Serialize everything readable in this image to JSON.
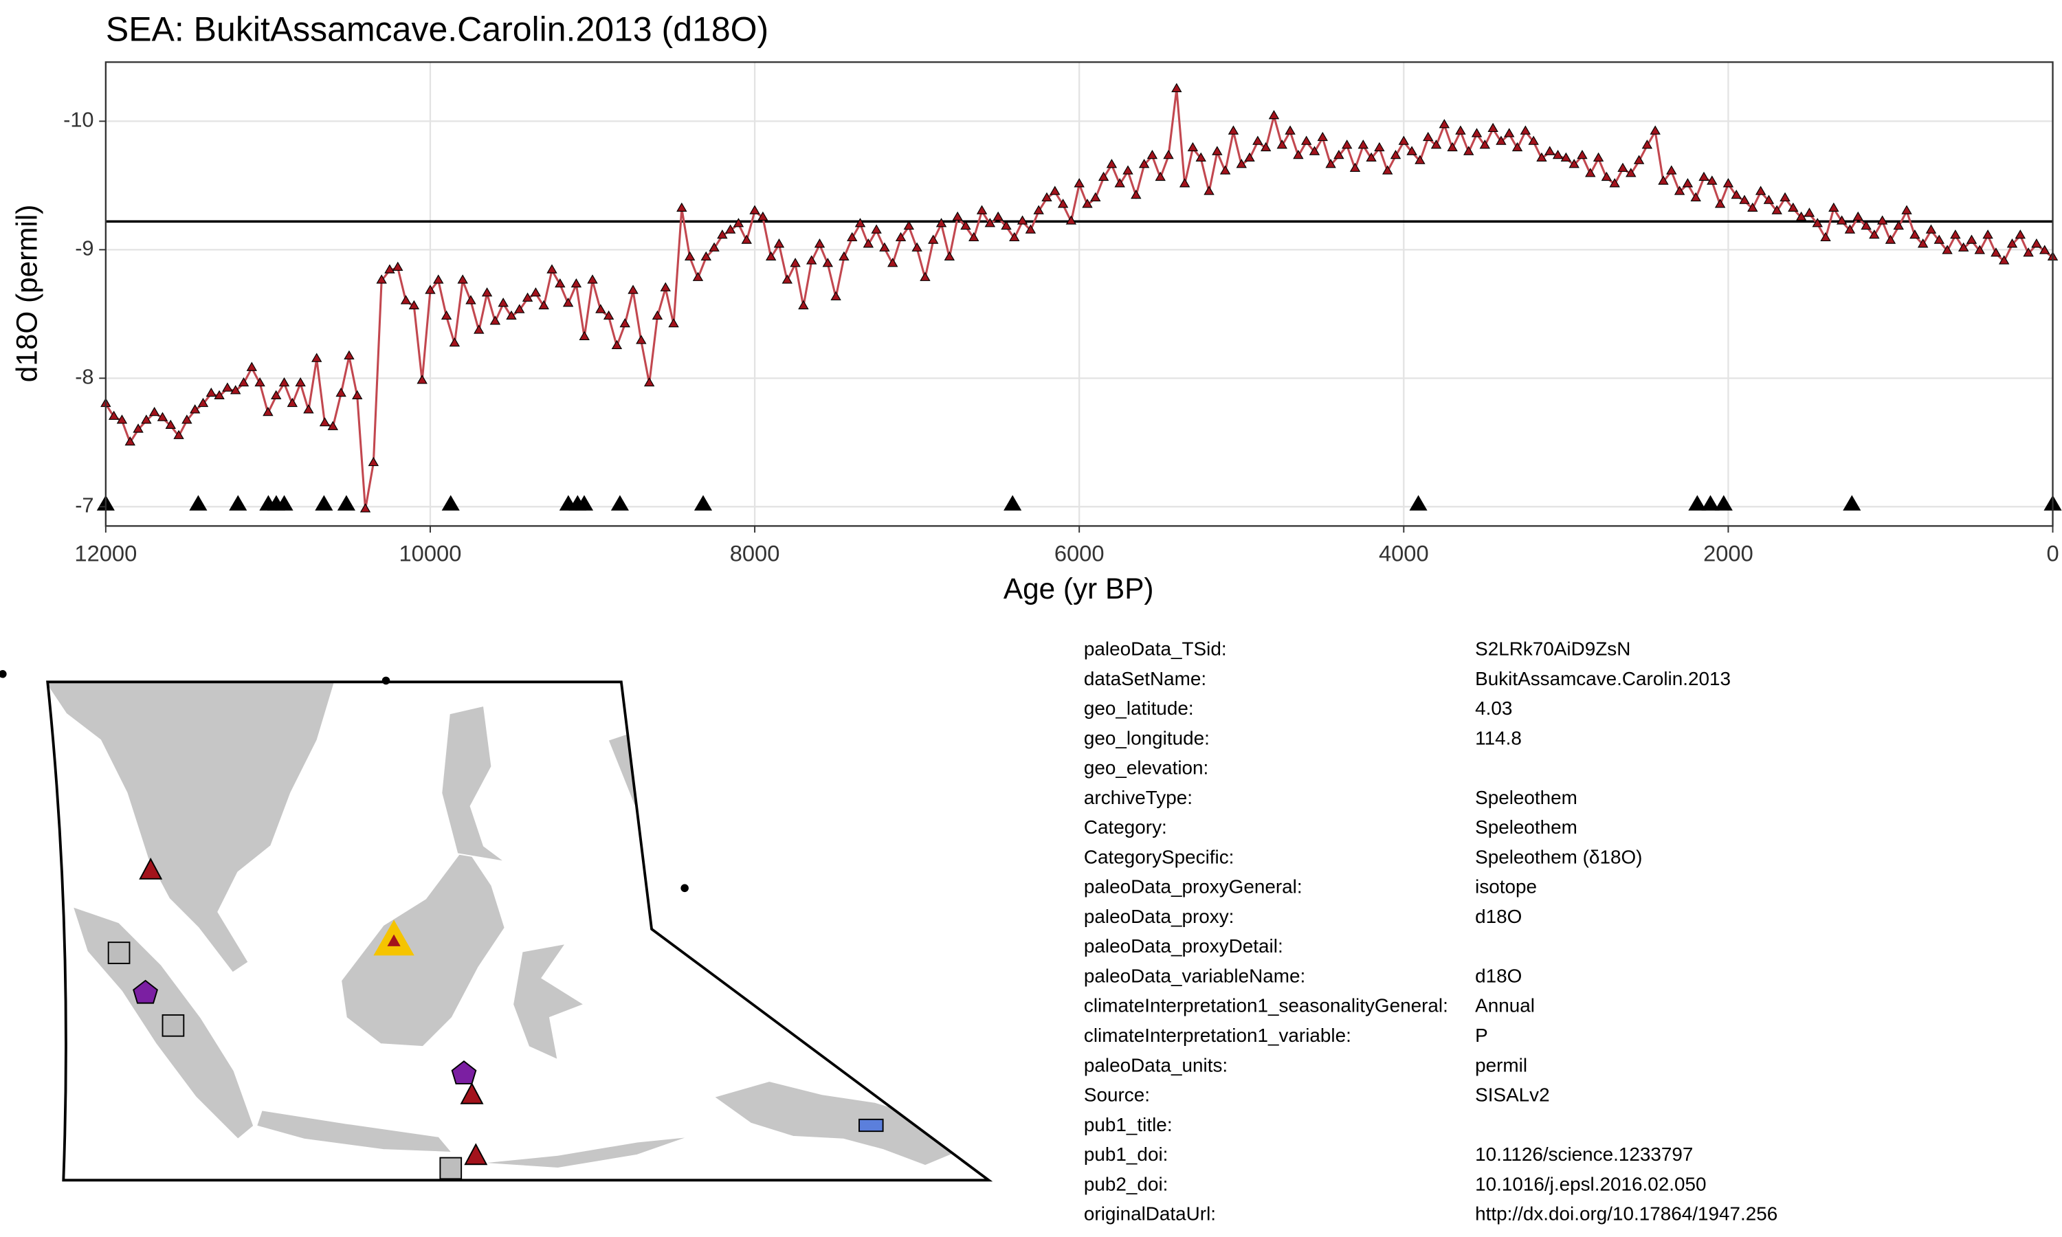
{
  "chart_data": {
    "type": "line",
    "title": "SEA: BukitAssamcave.Carolin.2013 (d18O)",
    "xlabel": "Age (yr BP)",
    "ylabel": "d18O (permil)",
    "xlim": [
      12000,
      0
    ],
    "ylim": [
      -6.85,
      -10.46
    ],
    "xticks": [
      12000,
      10000,
      8000,
      6000,
      4000,
      2000,
      0
    ],
    "yticks": [
      -10,
      -9,
      -8,
      -7
    ],
    "grid": true,
    "hline": -9.22,
    "series": [
      {
        "color": "#a3131c",
        "line_color": "#c2474f",
        "marker": "triangle",
        "show_line": true,
        "x": [
          12000,
          11950,
          11900,
          11850,
          11800,
          11750,
          11700,
          11650,
          11600,
          11550,
          11500,
          11450,
          11400,
          11350,
          11300,
          11250,
          11200,
          11150,
          11100,
          11050,
          11000,
          10950,
          10900,
          10850,
          10800,
          10750,
          10700,
          10650,
          10600,
          10550,
          10500,
          10450,
          10400,
          10350,
          10300,
          10250,
          10200,
          10150,
          10100,
          10050,
          10000,
          9950,
          9900,
          9850,
          9800,
          9750,
          9700,
          9650,
          9600,
          9550,
          9500,
          9450,
          9400,
          9350,
          9300,
          9250,
          9200,
          9150,
          9100,
          9050,
          9000,
          8950,
          8900,
          8850,
          8800,
          8750,
          8700,
          8650,
          8600,
          8550,
          8500,
          8450,
          8400,
          8350,
          8300,
          8250,
          8200,
          8150,
          8100,
          8050,
          8000,
          7950,
          7900,
          7850,
          7800,
          7750,
          7700,
          7650,
          7600,
          7550,
          7500,
          7450,
          7400,
          7350,
          7300,
          7250,
          7200,
          7150,
          7100,
          7050,
          7000,
          6950,
          6900,
          6850,
          6800,
          6750,
          6700,
          6650,
          6600,
          6550,
          6500,
          6450,
          6400,
          6350,
          6300,
          6250,
          6200,
          6150,
          6100,
          6050,
          6000,
          5950,
          5900,
          5850,
          5800,
          5750,
          5700,
          5650,
          5600,
          5550,
          5500,
          5450,
          5400,
          5350,
          5300,
          5250,
          5200,
          5150,
          5100,
          5050,
          5000,
          4950,
          4900,
          4850,
          4800,
          4750,
          4700,
          4650,
          4600,
          4550,
          4500,
          4450,
          4400,
          4350,
          4300,
          4250,
          4200,
          4150,
          4100,
          4050,
          4000,
          3950,
          3900,
          3850,
          3800,
          3750,
          3700,
          3650,
          3600,
          3550,
          3500,
          3450,
          3400,
          3350,
          3300,
          3250,
          3200,
          3150,
          3100,
          3050,
          3000,
          2950,
          2900,
          2850,
          2800,
          2750,
          2700,
          2650,
          2600,
          2550,
          2500,
          2450,
          2400,
          2350,
          2300,
          2250,
          2200,
          2150,
          2100,
          2050,
          2000,
          1950,
          1900,
          1850,
          1800,
          1750,
          1700,
          1650,
          1600,
          1550,
          1500,
          1450,
          1400,
          1350,
          1300,
          1250,
          1200,
          1150,
          1100,
          1050,
          1000,
          950,
          900,
          850,
          800,
          750,
          700,
          650,
          600,
          550,
          500,
          450,
          400,
          350,
          300,
          250,
          200,
          150,
          100,
          50,
          0
        ],
        "values": [
          -7.8,
          -7.7,
          -7.67,
          -7.5,
          -7.6,
          -7.67,
          -7.73,
          -7.69,
          -7.63,
          -7.55,
          -7.67,
          -7.75,
          -7.8,
          -7.88,
          -7.86,
          -7.92,
          -7.9,
          -7.96,
          -8.08,
          -7.96,
          -7.73,
          -7.86,
          -7.96,
          -7.8,
          -7.96,
          -7.75,
          -8.15,
          -7.65,
          -7.62,
          -7.88,
          -8.17,
          -7.86,
          -6.98,
          -7.34,
          -8.76,
          -8.84,
          -8.86,
          -8.6,
          -8.56,
          -7.98,
          -8.68,
          -8.76,
          -8.48,
          -8.27,
          -8.76,
          -8.6,
          -8.37,
          -8.66,
          -8.44,
          -8.58,
          -8.48,
          -8.53,
          -8.62,
          -8.66,
          -8.56,
          -8.84,
          -8.73,
          -8.58,
          -8.73,
          -8.32,
          -8.76,
          -8.53,
          -8.48,
          -8.25,
          -8.42,
          -8.68,
          -8.29,
          -7.96,
          -8.48,
          -8.7,
          -8.42,
          -9.32,
          -8.94,
          -8.78,
          -8.94,
          -9.01,
          -9.11,
          -9.15,
          -9.2,
          -9.07,
          -9.3,
          -9.25,
          -8.94,
          -9.04,
          -8.76,
          -8.89,
          -8.56,
          -8.91,
          -9.04,
          -8.89,
          -8.63,
          -8.94,
          -9.09,
          -9.2,
          -9.04,
          -9.15,
          -9.01,
          -8.89,
          -9.09,
          -9.18,
          -9.01,
          -8.78,
          -9.07,
          -9.2,
          -8.94,
          -9.25,
          -9.18,
          -9.09,
          -9.3,
          -9.2,
          -9.25,
          -9.18,
          -9.09,
          -9.22,
          -9.15,
          -9.3,
          -9.4,
          -9.45,
          -9.35,
          -9.22,
          -9.51,
          -9.35,
          -9.4,
          -9.56,
          -9.66,
          -9.51,
          -9.61,
          -9.42,
          -9.66,
          -9.73,
          -9.56,
          -9.73,
          -10.25,
          -9.51,
          -9.79,
          -9.71,
          -9.45,
          -9.76,
          -9.61,
          -9.92,
          -9.66,
          -9.71,
          -9.84,
          -9.79,
          -10.04,
          -9.81,
          -9.92,
          -9.73,
          -9.84,
          -9.76,
          -9.87,
          -9.66,
          -9.73,
          -9.81,
          -9.63,
          -9.81,
          -9.71,
          -9.79,
          -9.61,
          -9.73,
          -9.84,
          -9.76,
          -9.69,
          -9.87,
          -9.81,
          -9.97,
          -9.79,
          -9.92,
          -9.76,
          -9.9,
          -9.81,
          -9.94,
          -9.84,
          -9.9,
          -9.79,
          -9.92,
          -9.84,
          -9.71,
          -9.76,
          -9.73,
          -9.71,
          -9.66,
          -9.73,
          -9.59,
          -9.71,
          -9.56,
          -9.51,
          -9.63,
          -9.59,
          -9.69,
          -9.81,
          -9.92,
          -9.53,
          -9.61,
          -9.45,
          -9.51,
          -9.4,
          -9.56,
          -9.53,
          -9.35,
          -9.51,
          -9.42,
          -9.38,
          -9.32,
          -9.45,
          -9.38,
          -9.3,
          -9.4,
          -9.32,
          -9.25,
          -9.28,
          -9.2,
          -9.09,
          -9.32,
          -9.22,
          -9.15,
          -9.25,
          -9.18,
          -9.11,
          -9.22,
          -9.07,
          -9.18,
          -9.3,
          -9.11,
          -9.04,
          -9.15,
          -9.07,
          -8.99,
          -9.11,
          -9.01,
          -9.07,
          -8.99,
          -9.11,
          -8.97,
          -8.91,
          -9.04,
          -9.11,
          -8.97,
          -9.04,
          -8.99,
          -8.94
        ]
      },
      {
        "color": "#000000",
        "marker": "triangle",
        "show_line": false,
        "x": [
          12000,
          11430,
          11185,
          10998,
          10949,
          10900,
          10655,
          10517,
          9874,
          9149,
          9092,
          9051,
          8831,
          8318,
          6411,
          3910,
          2191,
          2110,
          2028,
          1238,
          0
        ],
        "values": [
          -7,
          -7,
          -7,
          -7,
          -7,
          -7,
          -7,
          -7,
          -7,
          -7,
          -7,
          -7,
          -7,
          -7,
          -7,
          -7,
          -7,
          -7,
          -7,
          -7,
          -7
        ]
      }
    ]
  },
  "metadata": {
    "rows": [
      {
        "key": "paleoData_TSid:",
        "value": "S2LRk70AiD9ZsN"
      },
      {
        "key": "dataSetName:",
        "value": "BukitAssamcave.Carolin.2013"
      },
      {
        "key": "geo_latitude:",
        "value": 4.03
      },
      {
        "key": "geo_longitude:",
        "value": 114.8
      },
      {
        "key": "geo_elevation:"
      },
      {
        "key": "archiveType:",
        "value": "Speleothem"
      },
      {
        "key": "Category:",
        "value": "Speleothem"
      },
      {
        "key": "CategorySpecific:",
        "value": "Speleothem (δ18O)"
      },
      {
        "key": "paleoData_proxyGeneral:",
        "value": "isotope"
      },
      {
        "key": "paleoData_proxy:",
        "value": "d18O"
      },
      {
        "key": "paleoData_proxyDetail:"
      },
      {
        "key": "paleoData_variableName:",
        "value": "d18O"
      },
      {
        "key": "climateInterpretation1_seasonalityGeneral:",
        "value": "Annual"
      },
      {
        "key": "climateInterpretation1_variable:",
        "value": "P"
      },
      {
        "key": "paleoData_units:",
        "value": "permil"
      },
      {
        "key": "Source:",
        "value": "SISALv2"
      },
      {
        "key": "pub1_title:"
      },
      {
        "key": "pub1_doi:",
        "value": "10.1126/science.1233797"
      },
      {
        "key": "pub2_doi:",
        "value": "10.1016/j.epsl.2016.02.050"
      },
      {
        "key": "originalDataUrl:",
        "value": "http://dx.doi.org/10.17864/1947.256"
      }
    ]
  }
}
